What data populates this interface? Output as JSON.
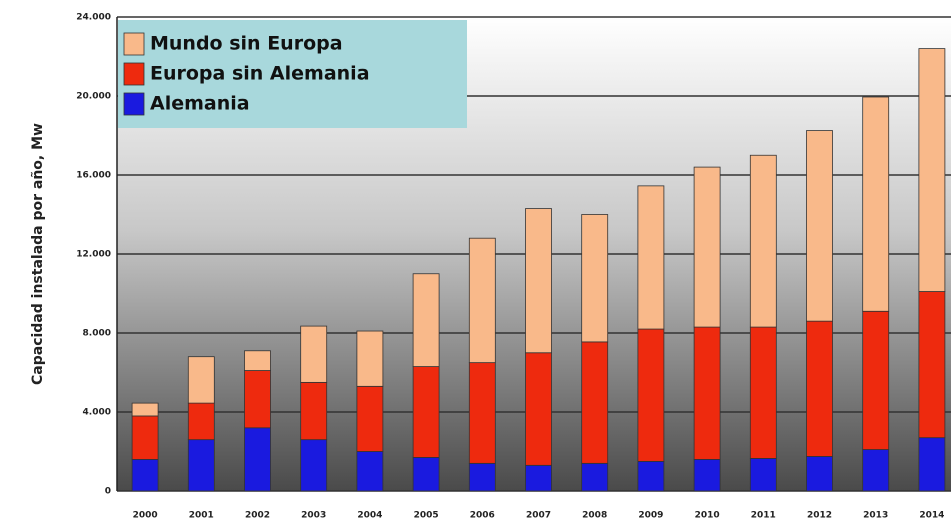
{
  "chart_data": {
    "type": "stacked_bar",
    "y_label": "Capacidad instalada por año, Mw",
    "categories": [
      "2000",
      "2001",
      "2002",
      "2003",
      "2004",
      "2005",
      "2006",
      "2007",
      "2008",
      "2009",
      "2010",
      "2011",
      "2012",
      "2013",
      "2014"
    ],
    "series": [
      {
        "name": "Alemania",
        "color": "#1a1adf",
        "values": [
          1600,
          2600,
          3200,
          2600,
          2000,
          1700,
          1400,
          1300,
          1400,
          1500,
          1600,
          1650,
          1750,
          2100,
          2700
        ]
      },
      {
        "name": "Europa sin Alemania",
        "color": "#ee2a0e",
        "values": [
          2200,
          1850,
          2900,
          2900,
          3300,
          4600,
          5100,
          5700,
          6150,
          6700,
          6700,
          6650,
          6850,
          7000,
          7400
        ]
      },
      {
        "name": "Mundo sin Europa",
        "color": "#f9b98a",
        "values": [
          650,
          2350,
          1000,
          2850,
          2800,
          4700,
          6300,
          7300,
          6450,
          7250,
          8100,
          8700,
          9650,
          10850,
          12300
        ]
      }
    ],
    "ylim": [
      0,
      24000
    ],
    "yticks": [
      0,
      {
        "value": 4000,
        "label": "4.000"
      },
      {
        "value": 8000,
        "label": "8.000"
      },
      {
        "value": 12000,
        "label": "12.000"
      },
      {
        "value": 16000,
        "label": "16.000"
      },
      {
        "value": 20000,
        "label": "20.000"
      },
      {
        "value": 24000,
        "label": "24.000"
      }
    ],
    "grid": true,
    "legend": "top-left"
  }
}
